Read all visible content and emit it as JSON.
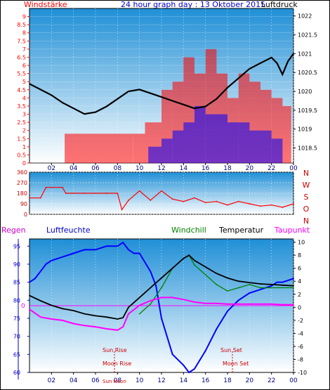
{
  "header": {
    "left_label": "Windstärke",
    "title": "24 hour graph day : 13 Oktober 2015",
    "right_label": "Luftdruck"
  },
  "colors": {
    "bg_top": "#1f8fd6",
    "bg_bottom": "#ffffff",
    "wind": "#ff0000",
    "gust": "#0000ff",
    "pressure": "#000000",
    "humidity": "#0000ff",
    "windchill": "#008000",
    "temperature": "#000000",
    "dewpoint": "#ff00ff",
    "frame": "#000000",
    "magenta_line": "#ff00ff"
  },
  "time_ticks": [
    "02",
    "04",
    "06",
    "08",
    "10",
    "12",
    "14",
    "16",
    "18",
    "20",
    "22",
    "00"
  ],
  "direction": {
    "labels": [
      "N",
      "W",
      "S",
      "O",
      "N"
    ],
    "y_ticks": [
      "360",
      "270",
      "180",
      "90",
      "0"
    ]
  },
  "bottom": {
    "labels": {
      "regen": "Regen",
      "luftfeuchte": "Luftfeuchte",
      "windchill": "Windchill",
      "temperatur": "Temperatur",
      "taupunkt": "Taupunkt"
    },
    "annotations": {
      "sun_rise": "Sun Rise",
      "moon_rise": "Moon Rise",
      "sun_set": "Sun Set",
      "moon_set": "Moon Set",
      "sun_noon": "Sun Noon"
    },
    "zero_marker": "0"
  },
  "chart_data": [
    {
      "type": "line",
      "title": "24 hour graph day : 13 Oktober 2015",
      "x_unit": "hour",
      "x_range": [
        0,
        24
      ],
      "y_left": {
        "label": "Windstärke",
        "ticks": [
          "0",
          "0.5",
          "1",
          "1.5",
          "2",
          "2.5",
          "3",
          "3.5",
          "4",
          "4.5",
          "5",
          "5.5",
          "6",
          "6.5",
          "7",
          "7.5",
          "8",
          "8.5",
          "9"
        ],
        "range": [
          0,
          9.5
        ]
      },
      "y_right": {
        "label": "Luftdruck",
        "ticks": [
          "1018.5",
          "1019",
          "1019.5",
          "1020",
          "1020.5",
          "1021",
          "1021.5",
          "1022"
        ],
        "range": [
          1018.1,
          1022.2
        ]
      },
      "series": [
        {
          "name": "Luftdruck",
          "axis": "right",
          "x": [
            0,
            1,
            2,
            3,
            4,
            5,
            6,
            7,
            8,
            9,
            10,
            11,
            12,
            13,
            14,
            15,
            16,
            17,
            18,
            19,
            20,
            21,
            22,
            22.5,
            23,
            23.5,
            24
          ],
          "y": [
            1020.2,
            1020.05,
            1019.9,
            1019.7,
            1019.55,
            1019.4,
            1019.45,
            1019.6,
            1019.8,
            1020.0,
            1020.05,
            1019.95,
            1019.85,
            1019.75,
            1019.65,
            1019.55,
            1019.6,
            1019.8,
            1020.1,
            1020.35,
            1020.6,
            1020.75,
            1020.9,
            1020.75,
            1020.45,
            1020.8,
            1021.0
          ]
        },
        {
          "name": "Windstärke",
          "axis": "left",
          "x": [
            0,
            3.2,
            9.4,
            10.5,
            12,
            13,
            14,
            15,
            16,
            17,
            18,
            19,
            20,
            21,
            22,
            23,
            23.8
          ],
          "y": [
            0,
            1.8,
            1.8,
            2.5,
            4.5,
            5.0,
            6.5,
            5.5,
            7.0,
            5.5,
            4.0,
            5.5,
            5.0,
            4.5,
            4.0,
            3.5,
            1.8
          ]
        },
        {
          "name": "Böen",
          "axis": "left",
          "x": [
            10.8,
            12,
            13,
            14,
            15,
            16,
            17,
            18,
            19,
            20,
            21,
            22,
            23
          ],
          "y": [
            1.0,
            1.5,
            2.0,
            2.5,
            3.5,
            3.0,
            3.0,
            2.5,
            2.5,
            2.0,
            2.0,
            1.5,
            1.5
          ]
        }
      ]
    },
    {
      "type": "line",
      "title": "",
      "x_unit": "hour",
      "x_range": [
        0,
        24
      ],
      "y_range": [
        0,
        360
      ],
      "y_ticks": [
        0,
        90,
        180,
        270,
        360
      ],
      "series": [
        {
          "name": "Windrichtung",
          "x": [
            0,
            1,
            1.5,
            2,
            3,
            3.3,
            4,
            5,
            6,
            7,
            8,
            8.4,
            9,
            10,
            11,
            12,
            13,
            14,
            15,
            16,
            17,
            18,
            19,
            20,
            21,
            22,
            23,
            24
          ],
          "y": [
            140,
            140,
            230,
            230,
            230,
            180,
            180,
            180,
            180,
            180,
            180,
            40,
            120,
            200,
            120,
            200,
            130,
            110,
            140,
            100,
            110,
            80,
            110,
            90,
            70,
            80,
            60,
            90
          ]
        }
      ]
    },
    {
      "type": "line",
      "title": "",
      "x_unit": "hour",
      "x_range": [
        0,
        24
      ],
      "y_left": {
        "label": "Luftfeuchte",
        "range": [
          60,
          97
        ],
        "ticks": [
          60,
          65,
          70,
          75,
          80,
          85,
          90,
          95
        ]
      },
      "y_right": {
        "label": "Temperatur",
        "range": [
          -10,
          10.5
        ],
        "ticks": [
          -10,
          -8,
          -6,
          -4,
          -2,
          0,
          2,
          4,
          6,
          8,
          10
        ]
      },
      "series": [
        {
          "name": "Luftfeuchte",
          "axis": "left",
          "x": [
            0,
            0.5,
            1,
            1.5,
            2,
            3,
            4,
            5,
            6,
            7,
            8,
            8.5,
            9,
            9.5,
            10,
            11,
            11.5,
            12,
            13,
            14,
            14.5,
            15,
            16,
            17,
            18,
            19,
            20,
            21,
            22,
            22.5,
            23,
            24
          ],
          "y": [
            85,
            86,
            88,
            90,
            91,
            92,
            93,
            94,
            94,
            95,
            95,
            96,
            94,
            93,
            93,
            88,
            84,
            75,
            65,
            62,
            60,
            61,
            66,
            72,
            77,
            80,
            82,
            83,
            84,
            85,
            85,
            86
          ]
        },
        {
          "name": "Windchill",
          "axis": "right",
          "x": [
            10,
            11,
            12,
            13,
            14,
            14.5,
            15,
            16,
            17,
            18,
            19,
            20,
            21,
            22,
            23,
            24
          ],
          "y": [
            -1,
            0.5,
            3,
            6,
            7.5,
            8,
            6.5,
            5,
            3.5,
            2.5,
            3,
            3.5,
            3,
            3,
            3,
            3
          ]
        },
        {
          "name": "Temperatur",
          "axis": "right",
          "x": [
            0,
            1,
            2,
            3,
            4,
            5,
            6,
            7,
            8,
            8.5,
            9,
            10,
            11,
            12,
            13,
            14,
            14.5,
            15,
            16,
            17,
            18,
            19,
            20,
            21,
            22,
            23,
            24
          ],
          "y": [
            1.8,
            1.0,
            0.3,
            -0.2,
            -0.5,
            -1,
            -1.3,
            -1.5,
            -1.8,
            -1.6,
            0,
            1.5,
            3,
            4.5,
            6,
            7.5,
            8,
            7.2,
            6.2,
            5.2,
            4.5,
            4,
            3.8,
            3.6,
            3.5,
            3.4,
            3.3
          ]
        },
        {
          "name": "Taupunkt",
          "axis": "right",
          "x": [
            0,
            1,
            2,
            3,
            4,
            5,
            6,
            7,
            8,
            8.5,
            9,
            10,
            11,
            12,
            13,
            14,
            15,
            16,
            17,
            18,
            19,
            20,
            21,
            22,
            23,
            24
          ],
          "y": [
            -0.3,
            -1.5,
            -1.8,
            -2,
            -2.5,
            -2.8,
            -3.0,
            -3.3,
            -3.5,
            -3.0,
            -1,
            0.3,
            1,
            1.5,
            1.5,
            1.2,
            0.8,
            0.6,
            0.6,
            0.5,
            0.5,
            0.5,
            0.5,
            0.5,
            0.4,
            0.4
          ]
        }
      ]
    }
  ]
}
